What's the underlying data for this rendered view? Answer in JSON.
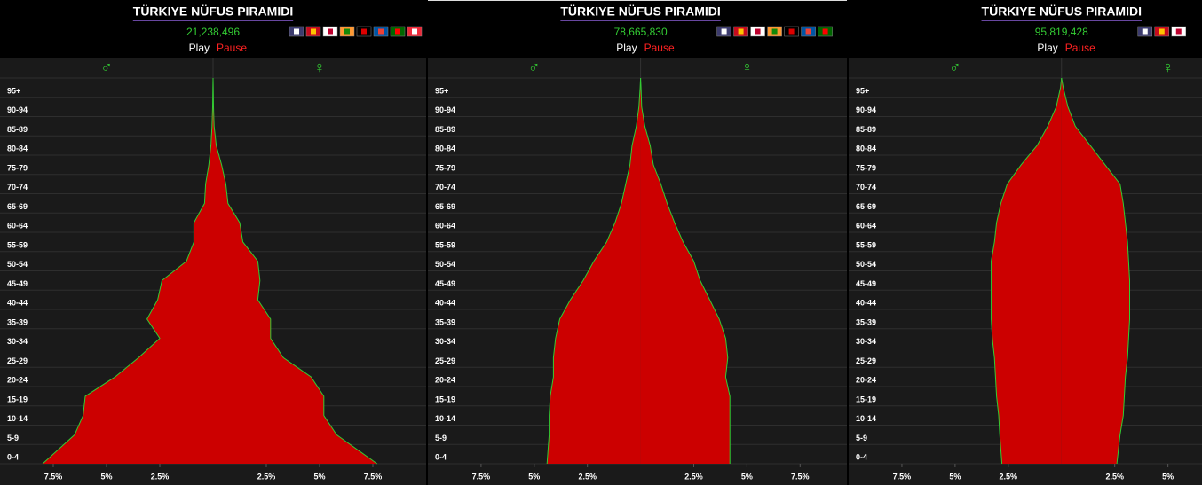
{
  "chart_data": [
    {
      "type": "pyramid",
      "title": "TÜRKIYE NÜFUS PIRAMIDI",
      "population": "21,238,496",
      "play": "Play",
      "pause": "Pause",
      "categories": [
        "0-4",
        "5-9",
        "10-14",
        "15-19",
        "20-24",
        "25-29",
        "30-34",
        "35-39",
        "40-44",
        "45-49",
        "50-54",
        "55-59",
        "60-64",
        "65-69",
        "70-74",
        "75-79",
        "80-84",
        "85-89",
        "90-94",
        "95+"
      ],
      "series": [
        {
          "name": "♂",
          "side": "left",
          "values": [
            8.0,
            6.5,
            6.1,
            6.0,
            4.6,
            3.5,
            2.5,
            3.1,
            2.6,
            2.4,
            1.25,
            0.9,
            0.9,
            0.4,
            0.35,
            0.2,
            0.1,
            0.05,
            0.02,
            0.01
          ]
        },
        {
          "name": "♀",
          "side": "right",
          "values": [
            7.7,
            5.8,
            5.2,
            5.2,
            4.6,
            3.3,
            2.7,
            2.7,
            2.1,
            2.2,
            2.1,
            1.4,
            1.25,
            0.7,
            0.6,
            0.4,
            0.15,
            0.05,
            0.02,
            0.01
          ]
        }
      ],
      "fill_color": "#cc0000",
      "line_color": "#33cc33",
      "xlim": [
        -10,
        10
      ],
      "xticks": [
        {
          "value": -7.5,
          "label": "7.5%"
        },
        {
          "value": -5,
          "label": "5%"
        },
        {
          "value": -2.5,
          "label": "2.5%"
        },
        {
          "value": 2.5,
          "label": "2.5%"
        },
        {
          "value": 5,
          "label": "5%"
        },
        {
          "value": 7.5,
          "label": "7.5%"
        }
      ]
    },
    {
      "type": "pyramid",
      "title": "TÜRKIYE NÜFUS PIRAMIDI",
      "population": "78,665,830",
      "play": "Play",
      "pause": "Pause",
      "categories": [
        "0-4",
        "5-9",
        "10-14",
        "15-19",
        "20-24",
        "25-29",
        "30-34",
        "35-39",
        "40-44",
        "45-49",
        "50-54",
        "55-59",
        "60-64",
        "65-69",
        "70-74",
        "75-79",
        "80-84",
        "85-89",
        "90-94",
        "95+"
      ],
      "series": [
        {
          "name": "♂",
          "side": "left",
          "values": [
            4.4,
            4.3,
            4.3,
            4.25,
            4.1,
            4.1,
            4.0,
            3.8,
            3.3,
            2.7,
            2.2,
            1.6,
            1.2,
            0.9,
            0.7,
            0.5,
            0.4,
            0.2,
            0.08,
            0.02
          ]
        },
        {
          "name": "♀",
          "side": "right",
          "values": [
            4.2,
            4.2,
            4.2,
            4.2,
            4.0,
            4.1,
            4.0,
            3.7,
            3.25,
            2.8,
            2.5,
            2.0,
            1.6,
            1.25,
            0.95,
            0.6,
            0.45,
            0.2,
            0.05,
            0.02
          ]
        }
      ],
      "fill_color": "#cc0000",
      "line_color": "#33cc33",
      "xlim": [
        -10,
        9.7
      ],
      "xticks": [
        {
          "value": -7.5,
          "label": "7.5%"
        },
        {
          "value": -5,
          "label": "5%"
        },
        {
          "value": -2.5,
          "label": "2.5%"
        },
        {
          "value": 2.5,
          "label": "2.5%"
        },
        {
          "value": 5,
          "label": "5%"
        },
        {
          "value": 7.5,
          "label": "7.5%"
        }
      ]
    },
    {
      "type": "pyramid",
      "title": "TÜRKIYE NÜFUS PIRAMIDI",
      "population": "95,819,428",
      "play": "Play",
      "pause": "Pause",
      "categories": [
        "0-4",
        "5-9",
        "10-14",
        "15-19",
        "20-24",
        "25-29",
        "30-34",
        "35-39",
        "40-44",
        "45-49",
        "50-54",
        "55-59",
        "60-64",
        "65-69",
        "70-74",
        "75-79",
        "80-84",
        "85-89",
        "90-94",
        "95+"
      ],
      "series": [
        {
          "name": "♂",
          "side": "left",
          "values": [
            2.8,
            2.9,
            2.95,
            3.05,
            3.1,
            3.15,
            3.25,
            3.3,
            3.3,
            3.3,
            3.3,
            3.15,
            3.05,
            2.85,
            2.55,
            1.9,
            1.15,
            0.65,
            0.25,
            0.05
          ]
        },
        {
          "name": "♀",
          "side": "right",
          "values": [
            2.6,
            2.75,
            2.9,
            2.95,
            3.0,
            3.1,
            3.15,
            3.2,
            3.2,
            3.2,
            3.15,
            3.1,
            3.0,
            2.9,
            2.75,
            2.05,
            1.35,
            0.65,
            0.3,
            0.08
          ]
        }
      ],
      "fill_color": "#cc0000",
      "line_color": "#33cc33",
      "xlim": [
        -10,
        6.6
      ],
      "xticks": [
        {
          "value": -7.5,
          "label": "7.5%"
        },
        {
          "value": -5,
          "label": "5%"
        },
        {
          "value": -2.5,
          "label": "2.5%"
        },
        {
          "value": 2.5,
          "label": "2.5%"
        },
        {
          "value": 5,
          "label": "5%"
        }
      ]
    }
  ]
}
